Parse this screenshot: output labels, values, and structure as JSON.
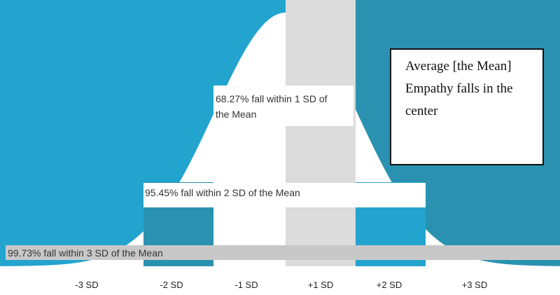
{
  "colors": {
    "background_left": "#22A4CE",
    "background_right": "#2A92B0",
    "curve_fill": "#FFFFFF",
    "band_1sd_right": "#DCDCDC",
    "band_3sd": "#C8C8C8",
    "callout_border": "#111111"
  },
  "bands": {
    "one_sd": "68.27% fall within 1 SD of the Mean",
    "two_sd": "95.45% fall within 2 SD of the Mean",
    "three_sd": "99.73% fall within 3 SD of the Mean"
  },
  "callout": {
    "text": "Average [the Mean] Empathy falls in the center"
  },
  "axis": {
    "ticks": [
      "-3 SD",
      "-2 SD",
      "-1 SD",
      "+1 SD",
      "+2 SD",
      "+3 SD"
    ]
  }
}
